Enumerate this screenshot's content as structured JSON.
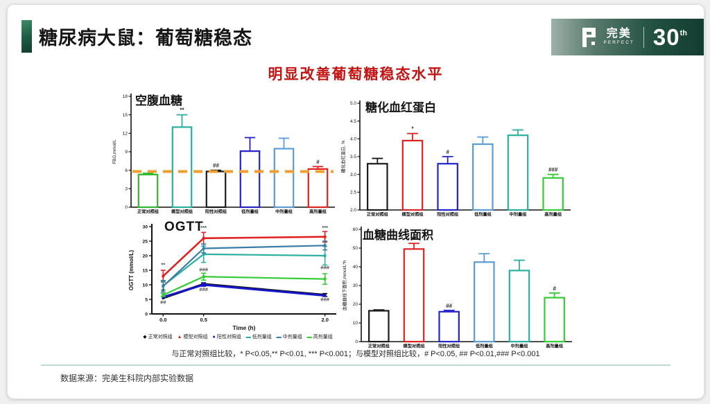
{
  "header": {
    "title": "糖尿病大鼠：葡萄糖稳态"
  },
  "logo": {
    "brand_cn": "完美",
    "brand_en": "PERFECT",
    "anniversary": "30",
    "anniversary_suffix": "th",
    "banner_color": "#1d4c40",
    "mark_icon": "perfect-p-icon"
  },
  "headline": {
    "text": "明显改善葡萄糖稳态水平",
    "color": "#c31414"
  },
  "footnote": "与正常对照组比较，* P<0.05,** P<0.01, *** P<0.001；与模型对照组比较，# P<0.05, ## P<0.01,### P<0.001",
  "source": "数据来源：完美生科院内部实验数据",
  "accent_color": "#1b5a43",
  "chart_data": [
    {
      "id": "fbg",
      "type": "bar",
      "title": "空腹血糖",
      "ylabel": "FBG,mmol/L",
      "ylim": [
        0,
        18
      ],
      "yticks": [
        0,
        3,
        6,
        9,
        12,
        15,
        18
      ],
      "yticklabels": [
        "0",
        "3",
        "6",
        "9",
        "12",
        "15",
        "18"
      ],
      "categories": [
        "正常对照组",
        "模型对照组",
        "阳性对照组",
        "低剂量组",
        "中剂量组",
        "高剂量组"
      ],
      "values": [
        5.3,
        13,
        5.8,
        9.1,
        9.5,
        6.2
      ],
      "errors": [
        0.2,
        2,
        0.2,
        2.2,
        1.7,
        0.4
      ],
      "colors": [
        "#2db92d",
        "#2aaf9f",
        "#1a1a1a",
        "#2323cc",
        "#5b9bd5",
        "#e02121"
      ],
      "annotations": [
        "",
        "**",
        "##",
        "",
        "",
        "#"
      ],
      "refline": {
        "y": 5.8,
        "color": "#f09e2e"
      }
    },
    {
      "id": "hba1c",
      "type": "bar",
      "title": "糖化血红蛋白",
      "ylabel": "糖化血红蛋白, %",
      "ylim": [
        2,
        5
      ],
      "yticks": [
        2,
        2.5,
        3,
        3.5,
        4,
        4.5,
        5
      ],
      "yticklabels": [
        "2.0",
        "2.5",
        "3.0",
        "3.5",
        "4.0",
        "4.5",
        "5.0"
      ],
      "categories": [
        "正常对照组",
        "模型对照组",
        "阳性对照组",
        "低剂量组",
        "中剂量组",
        "高剂量组"
      ],
      "values": [
        3.3,
        3.95,
        3.3,
        3.85,
        4.1,
        2.9
      ],
      "errors": [
        0.15,
        0.2,
        0.2,
        0.2,
        0.15,
        0.1
      ],
      "colors": [
        "#1a1a1a",
        "#e02121",
        "#2323cc",
        "#5b9bd5",
        "#2aaf9f",
        "#33cc33"
      ],
      "annotations": [
        "",
        "*",
        "#",
        "",
        "",
        "###"
      ]
    },
    {
      "id": "ogtt",
      "type": "line",
      "title": "OGTT",
      "xlabel": "Time (h)",
      "ylabel": "OGTT (mmol/L)",
      "x": [
        0,
        0.5,
        2
      ],
      "xticklabels": [
        "0.0",
        "0.5",
        "2.0"
      ],
      "ylim": [
        0,
        30
      ],
      "yticks": [
        0,
        5,
        10,
        15,
        20,
        25,
        30
      ],
      "yticklabels": [
        "0",
        "5",
        "10",
        "15",
        "20",
        "25",
        "30"
      ],
      "series": [
        {
          "name": "正常对照组",
          "color": "#111111",
          "marker": "◆",
          "width": 3.4,
          "values": [
            5.5,
            10.2,
            6.5
          ],
          "errors": [
            0.4,
            0.5,
            0.5
          ]
        },
        {
          "name": "模型对照组",
          "color": "#e02121",
          "marker": "▲",
          "width": 2.6,
          "values": [
            13,
            26,
            26.5
          ],
          "errors": [
            2,
            2,
            1.8
          ]
        },
        {
          "name": "阳性对照组",
          "color": "#1515cc",
          "marker": "●",
          "width": 3.0,
          "values": [
            5.8,
            10,
            6.3
          ],
          "errors": [
            0.4,
            0.5,
            0.4
          ]
        },
        {
          "name": "低剂量组",
          "color": "#2aaf9f",
          "marker": "▬",
          "width": 2.2,
          "values": [
            9.7,
            20.5,
            20
          ],
          "errors": [
            1.5,
            2.8,
            3.2
          ]
        },
        {
          "name": "中剂量组",
          "color": "#3a7ca8",
          "marker": "▬",
          "width": 2.2,
          "values": [
            9.5,
            22.5,
            23.5
          ],
          "errors": [
            2,
            1.5,
            1.5
          ]
        },
        {
          "name": "高剂量组",
          "color": "#33cc33",
          "marker": "▬",
          "width": 2.2,
          "values": [
            6.5,
            12.8,
            12
          ],
          "errors": [
            0.5,
            1.2,
            1.8
          ]
        }
      ],
      "annotations": [
        {
          "x": 0,
          "y": 16.3,
          "text": "**"
        },
        {
          "x": 0,
          "y": 7.6,
          "text": "#"
        },
        {
          "x": 0,
          "y": 3.4,
          "text": "##"
        },
        {
          "x": 0.5,
          "y": 29,
          "text": "***"
        },
        {
          "x": 0.5,
          "y": 14.7,
          "text": "###"
        },
        {
          "x": 0.5,
          "y": 7.8,
          "text": "###"
        },
        {
          "x": 2,
          "y": 29,
          "text": "***"
        },
        {
          "x": 2,
          "y": 15.3,
          "text": "###"
        },
        {
          "x": 2,
          "y": 4.4,
          "text": "###"
        }
      ],
      "legend_position": "bottom"
    },
    {
      "id": "auc",
      "type": "bar",
      "title": "血糖曲线面积",
      "ylabel": "血糖曲线下面积,mmol/L*h",
      "ylim": [
        0,
        60
      ],
      "yticks": [
        0,
        10,
        20,
        30,
        40,
        50,
        60
      ],
      "yticklabels": [
        "0",
        "10",
        "20",
        "30",
        "40",
        "50",
        "60"
      ],
      "categories": [
        "正常对照组",
        "模型对照组",
        "阳性对照组",
        "低剂量组",
        "中剂量组",
        "高剂量组"
      ],
      "values": [
        16.5,
        49.5,
        16,
        42.5,
        38,
        23.5
      ],
      "errors": [
        0.5,
        3,
        0.7,
        4.5,
        5.5,
        2.5
      ],
      "colors": [
        "#1a1a1a",
        "#e02121",
        "#2323cc",
        "#5b9bd5",
        "#2aaf9f",
        "#33cc33"
      ],
      "annotations": [
        "",
        "**",
        "##",
        "",
        "",
        "#"
      ]
    }
  ]
}
